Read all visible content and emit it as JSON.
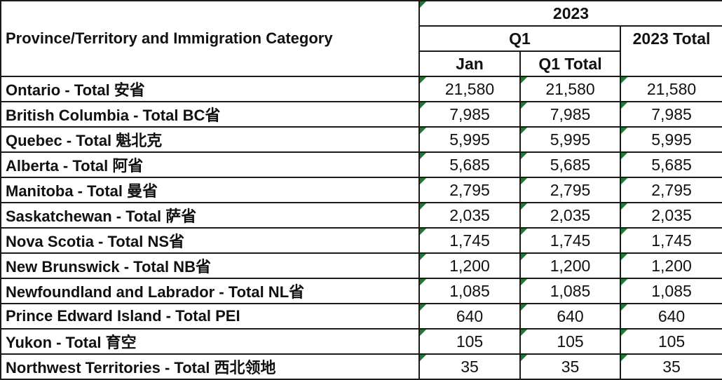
{
  "header": {
    "category_label": "Province/Territory and Immigration Category",
    "year": "2023",
    "quarter": "Q1",
    "year_total": "2023 Total",
    "month": "Jan",
    "quarter_total": "Q1 Total"
  },
  "rows": [
    {
      "name": "Ontario - Total 安省",
      "jan": "21,580",
      "q1_total": "21,580",
      "total": "21,580"
    },
    {
      "name": "British Columbia - Total BC省",
      "jan": "7,985",
      "q1_total": "7,985",
      "total": "7,985"
    },
    {
      "name": "Quebec - Total 魁北克",
      "jan": "5,995",
      "q1_total": "5,995",
      "total": "5,995"
    },
    {
      "name": "Alberta - Total 阿省",
      "jan": "5,685",
      "q1_total": "5,685",
      "total": "5,685"
    },
    {
      "name": "Manitoba - Total 曼省",
      "jan": "2,795",
      "q1_total": "2,795",
      "total": "2,795"
    },
    {
      "name": "Saskatchewan - Total 萨省",
      "jan": "2,035",
      "q1_total": "2,035",
      "total": "2,035"
    },
    {
      "name": "Nova Scotia - Total NS省",
      "jan": "1,745",
      "q1_total": "1,745",
      "total": "1,745"
    },
    {
      "name": "New Brunswick - Total NB省",
      "jan": "1,200",
      "q1_total": "1,200",
      "total": "1,200"
    },
    {
      "name": "Newfoundland and Labrador - Total NL省",
      "jan": "1,085",
      "q1_total": "1,085",
      "total": "1,085"
    },
    {
      "name": "Prince Edward Island - Total PEI",
      "jan": "640",
      "q1_total": "640",
      "total": "640"
    },
    {
      "name": "Yukon - Total 育空",
      "jan": "105",
      "q1_total": "105",
      "total": "105"
    },
    {
      "name": "Northwest Territories - Total 西北领地",
      "jan": "35",
      "q1_total": "35",
      "total": "35"
    }
  ],
  "colors": {
    "border": "#1a1a1a",
    "comment_marker": "#1e7b34",
    "text": "#111111"
  }
}
